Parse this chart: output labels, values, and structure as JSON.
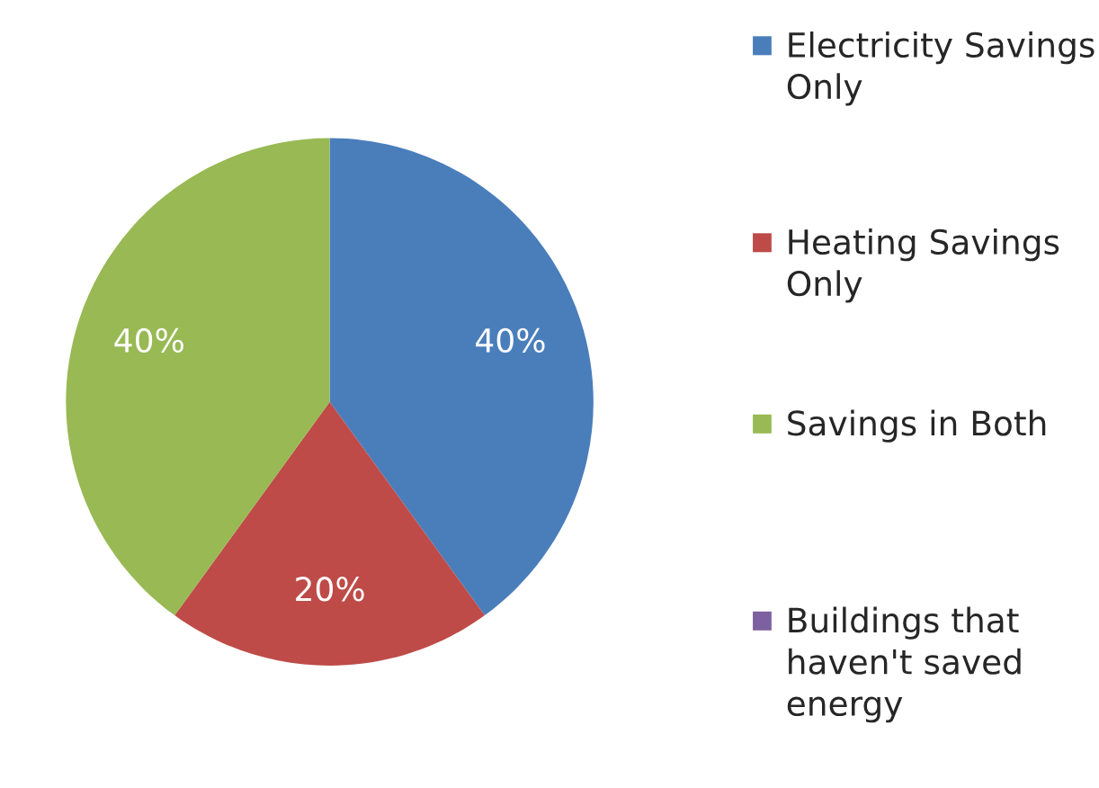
{
  "chart_data": {
    "type": "pie",
    "categories": [
      "Electricity Savings Only",
      "Heating Savings Only",
      "Savings in Both",
      "Buildings that haven't saved energy"
    ],
    "values": [
      40,
      20,
      40,
      0
    ],
    "colors": [
      "#4a7ebb",
      "#be4b48",
      "#98b954",
      "#7d60a0"
    ],
    "value_labels": [
      "40%",
      "20%",
      "40%",
      null
    ],
    "legend": "right"
  }
}
